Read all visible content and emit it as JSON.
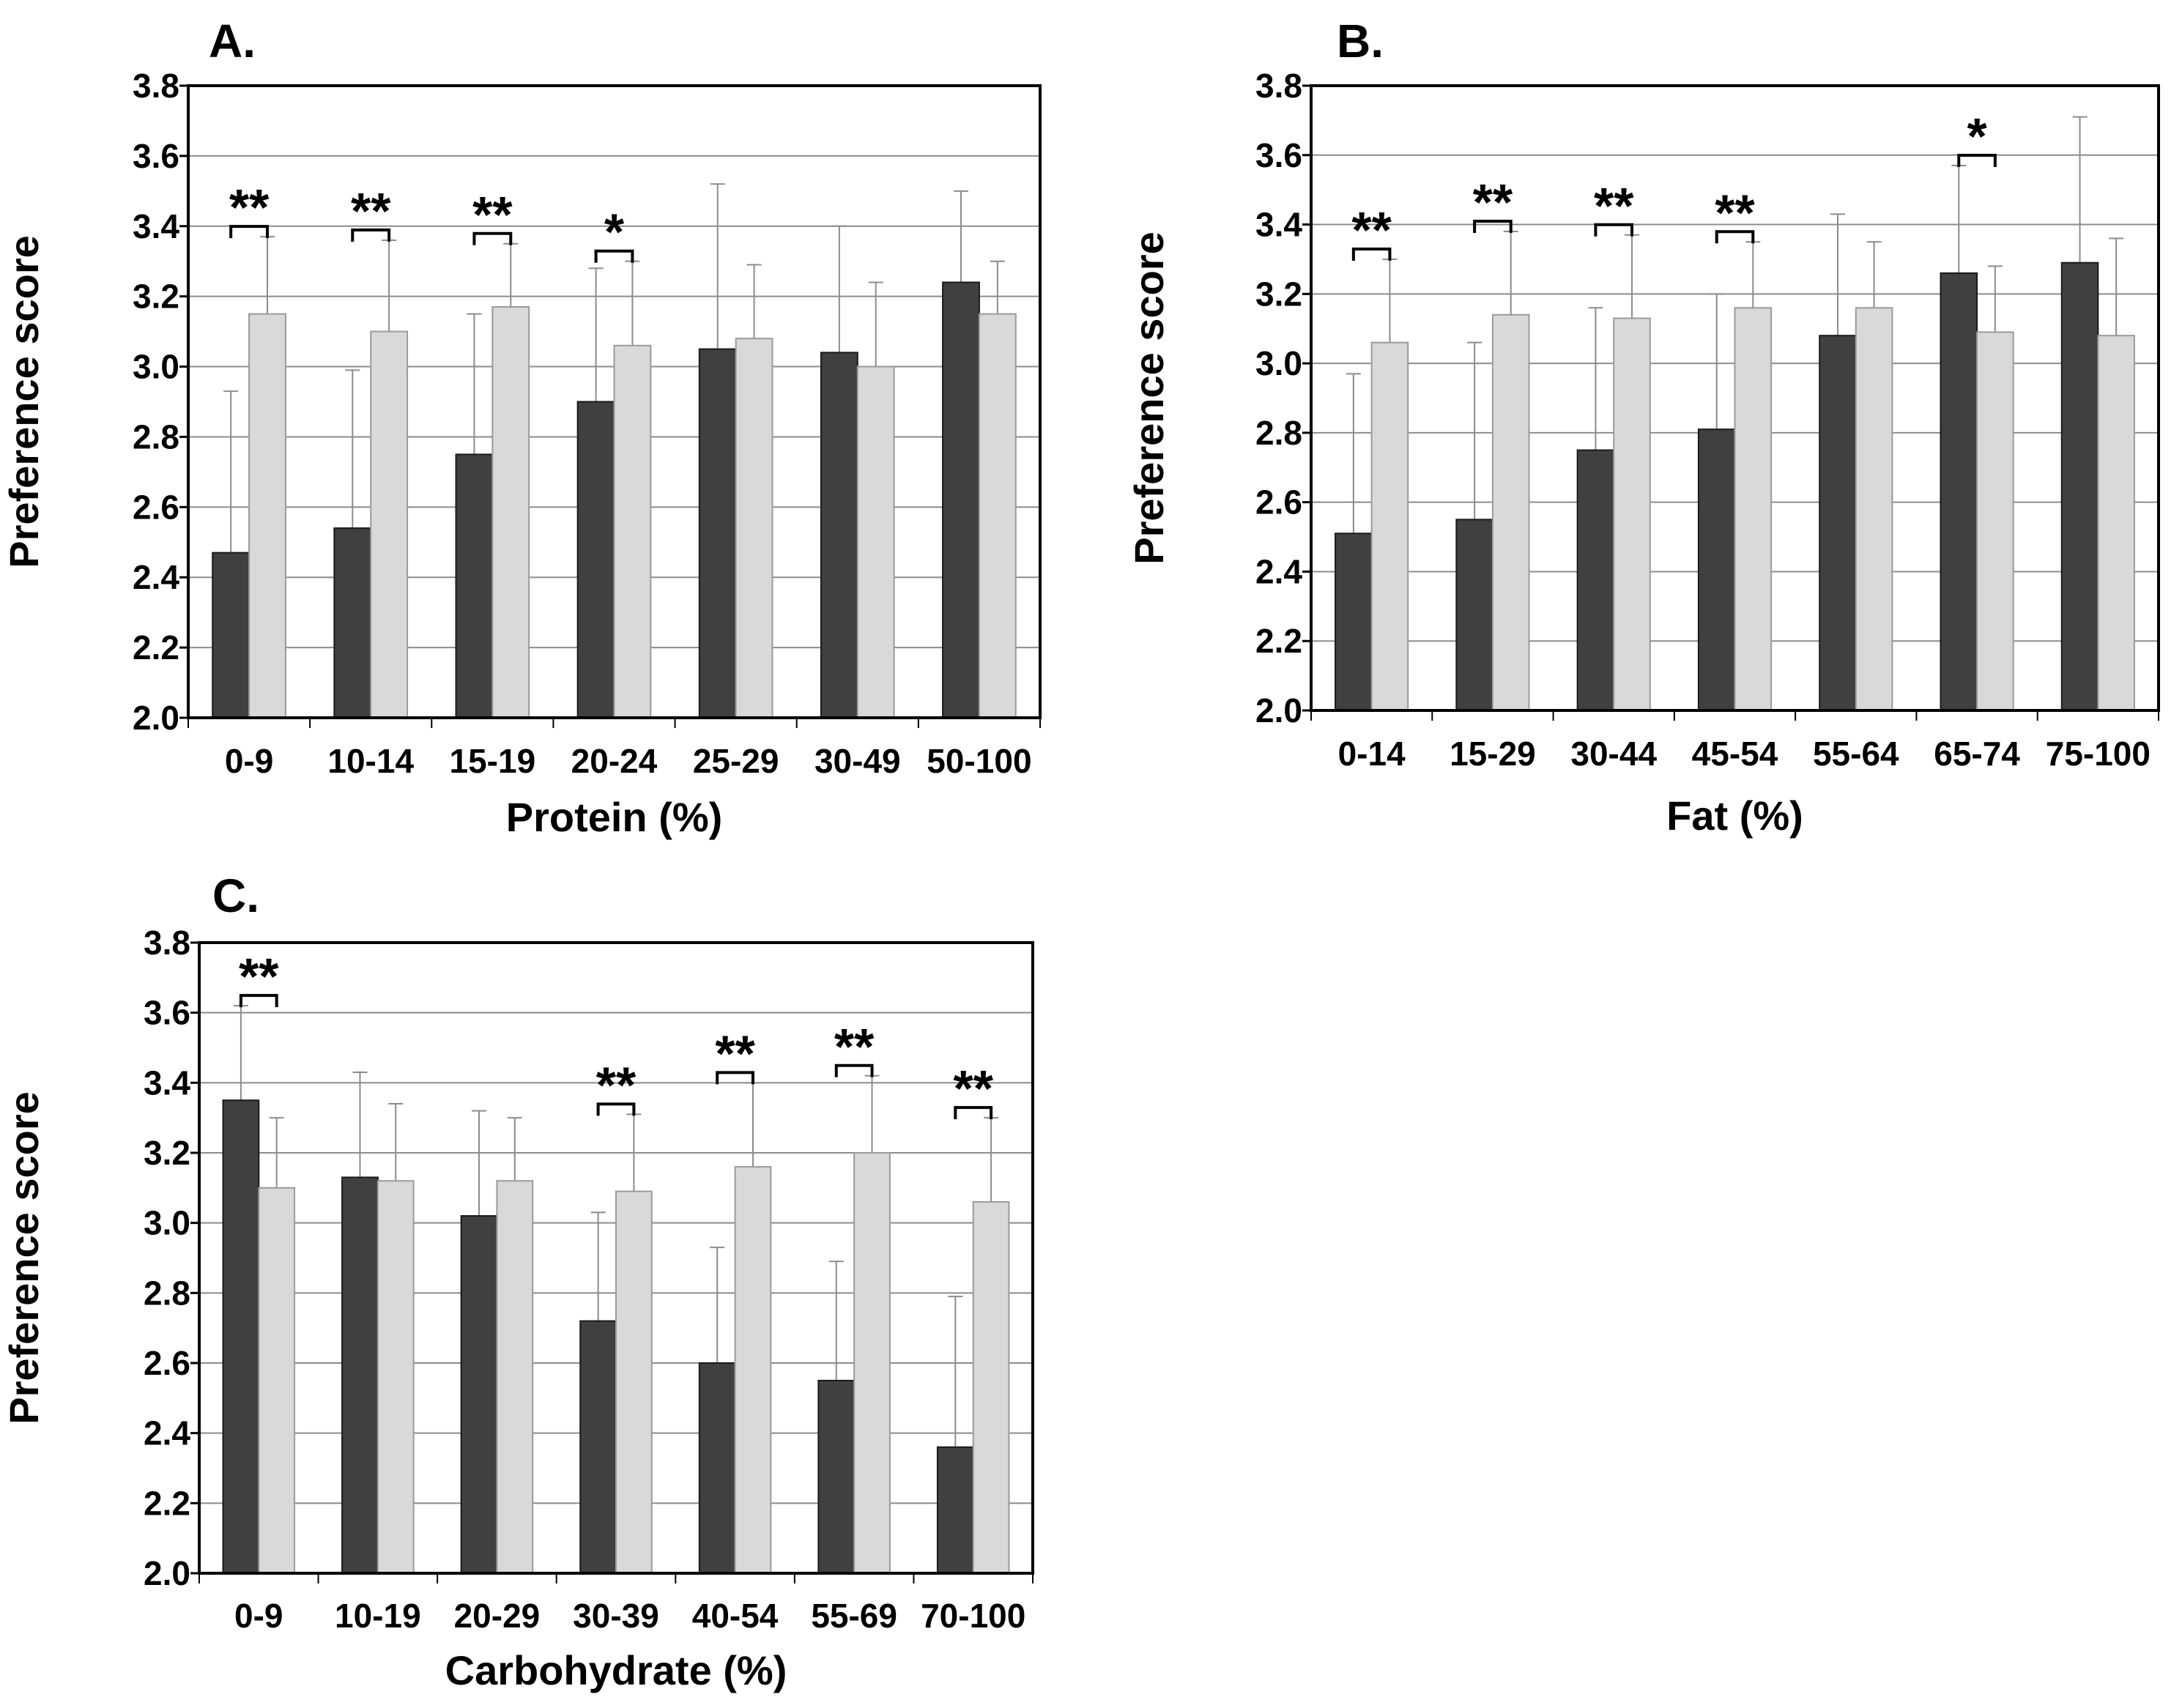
{
  "chart_data": [
    {
      "panel": "A.",
      "type": "bar",
      "xlabel": "Protein  (%)",
      "ylabel": "Preference score",
      "ylim": [
        2.0,
        3.8
      ],
      "yticks": [
        "2.0",
        "2.2",
        "2.4",
        "2.6",
        "2.8",
        "3.0",
        "3.2",
        "3.4",
        "3.6",
        "3.8"
      ],
      "grid": true,
      "categories": [
        "0-9",
        "10-14",
        "15-19",
        "20-24",
        "25-29",
        "30-49",
        "50-100"
      ],
      "series": [
        {
          "name": "dark",
          "color": "#404040",
          "values": [
            2.47,
            2.54,
            2.75,
            2.9,
            3.05,
            3.04,
            3.24
          ],
          "errors": [
            0.46,
            0.45,
            0.4,
            0.38,
            0.47,
            0.36,
            0.26
          ]
        },
        {
          "name": "light",
          "color": "#d9d9d9",
          "values": [
            3.15,
            3.1,
            3.17,
            3.06,
            3.08,
            3.0,
            3.15
          ],
          "errors": [
            0.22,
            0.26,
            0.18,
            0.24,
            0.21,
            0.24,
            0.15
          ]
        }
      ],
      "significance": [
        "**",
        "**",
        "**",
        "*",
        "",
        "",
        ""
      ]
    },
    {
      "panel": "B.",
      "type": "bar",
      "xlabel": "Fat  (%)",
      "ylabel": "Preference score",
      "ylim": [
        2.0,
        3.8
      ],
      "yticks": [
        "2.0",
        "2.2",
        "2.4",
        "2.6",
        "2.8",
        "3.0",
        "3.2",
        "3.4",
        "3.6",
        "3.8"
      ],
      "grid": true,
      "categories": [
        "0-14",
        "15-29",
        "30-44",
        "45-54",
        "55-64",
        "65-74",
        "75-100"
      ],
      "series": [
        {
          "name": "dark",
          "color": "#404040",
          "values": [
            2.51,
            2.55,
            2.75,
            2.81,
            3.08,
            3.26,
            3.29
          ],
          "errors": [
            0.46,
            0.51,
            0.41,
            0.39,
            0.35,
            0.31,
            0.42
          ]
        },
        {
          "name": "light",
          "color": "#d9d9d9",
          "values": [
            3.06,
            3.14,
            3.13,
            3.16,
            3.16,
            3.09,
            3.08
          ],
          "errors": [
            0.24,
            0.24,
            0.24,
            0.19,
            0.19,
            0.19,
            0.28
          ]
        }
      ],
      "significance": [
        "**",
        "**",
        "**",
        "**",
        "",
        "*",
        ""
      ]
    },
    {
      "panel": "C.",
      "type": "bar",
      "xlabel": "Carbohydrate  (%)",
      "ylabel": "Preference score",
      "ylim": [
        2.0,
        3.8
      ],
      "yticks": [
        "2.0",
        "2.2",
        "2.4",
        "2.6",
        "2.8",
        "3.0",
        "3.2",
        "3.4",
        "3.6",
        "3.8"
      ],
      "grid": true,
      "categories": [
        "0-9",
        "10-19",
        "20-29",
        "30-39",
        "40-54",
        "55-69",
        "70-100"
      ],
      "series": [
        {
          "name": "dark",
          "color": "#404040",
          "values": [
            3.35,
            3.13,
            3.02,
            2.72,
            2.6,
            2.55,
            2.36
          ],
          "errors": [
            0.27,
            0.3,
            0.3,
            0.31,
            0.33,
            0.34,
            0.43
          ]
        },
        {
          "name": "light",
          "color": "#d9d9d9",
          "values": [
            3.1,
            3.12,
            3.12,
            3.09,
            3.16,
            3.2,
            3.06
          ],
          "errors": [
            0.2,
            0.22,
            0.18,
            0.22,
            0.24,
            0.22,
            0.24
          ]
        }
      ],
      "significance": [
        "**",
        "",
        "",
        "**",
        "**",
        "**",
        "**"
      ]
    }
  ]
}
